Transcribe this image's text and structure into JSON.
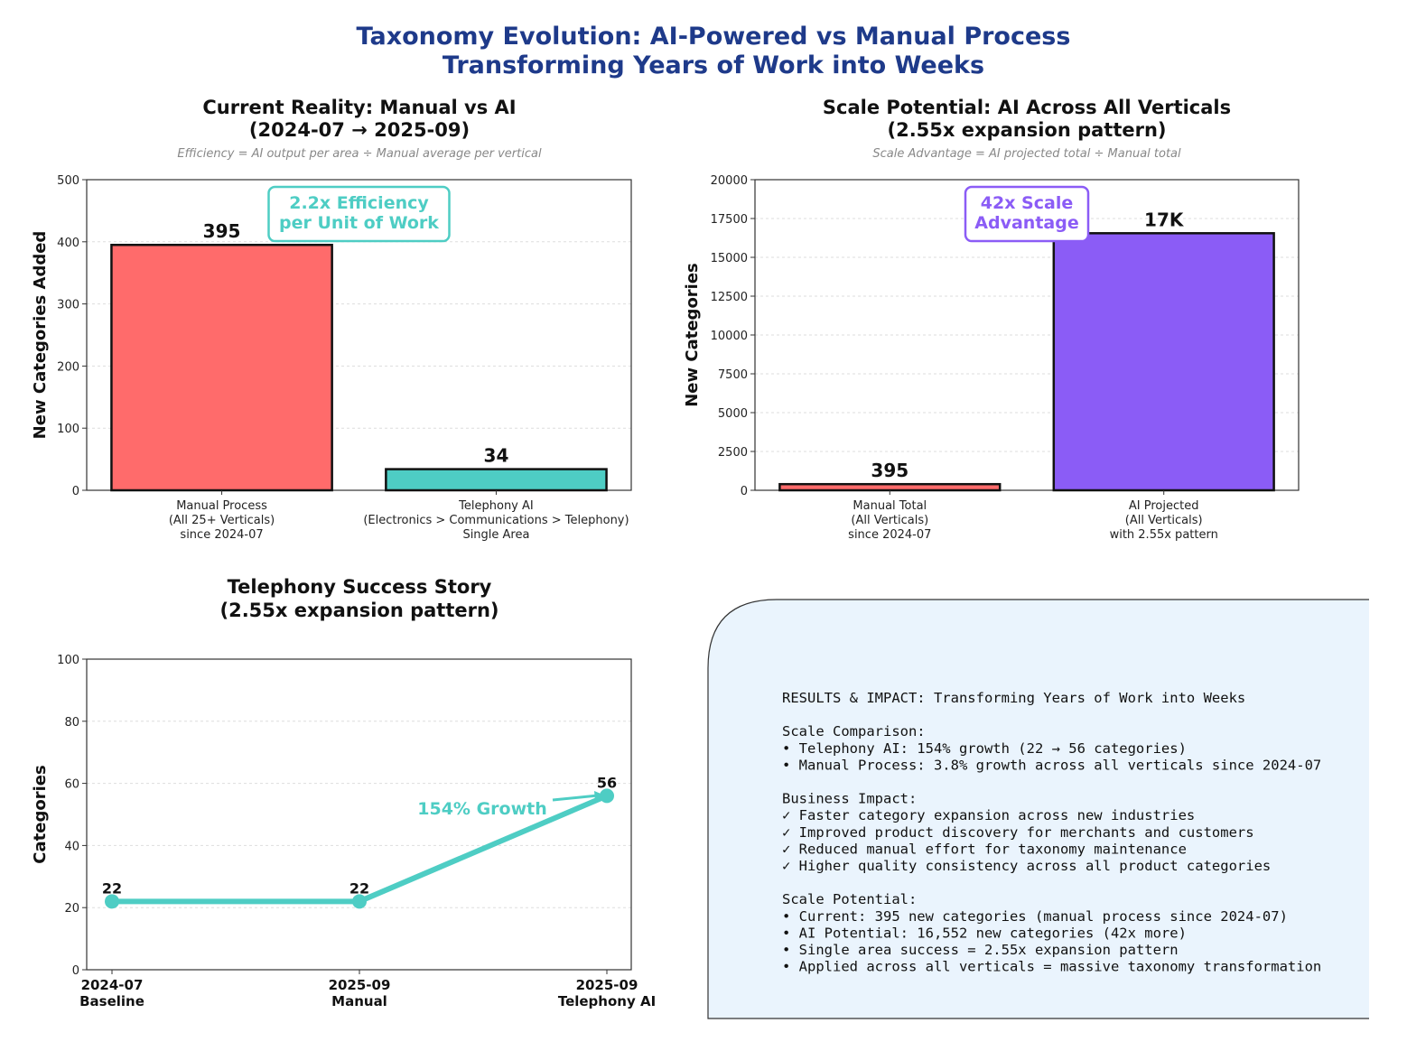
{
  "title_lines": [
    "Taxonomy Evolution: AI-Powered vs Manual Process",
    "Transforming Years of Work into Weeks"
  ],
  "colors": {
    "title": "#1e3a8a",
    "manual": "#ff6b6b",
    "ai_teal": "#4ecdc4",
    "ai_purple": "#8b5cf6",
    "panel_bg": "#eaf4fd"
  },
  "chart_data": [
    {
      "type": "bar",
      "title_lines": [
        "Current Reality: Manual vs AI",
        "(2024-07 → 2025-09)"
      ],
      "subtitle": "Efficiency = AI output per area ÷ Manual average per vertical",
      "categories": [
        [
          "Manual Process",
          "(All 25+ Verticals)",
          "since 2024-07"
        ],
        [
          "Telephony AI",
          "(Electronics > Communications > Telephony)",
          "Single Area"
        ]
      ],
      "values": [
        395,
        34
      ],
      "value_labels": [
        "395",
        "34"
      ],
      "bar_colors": [
        "#ff6b6b",
        "#4ecdc4"
      ],
      "ylabel": "New Categories Added",
      "ylim": [
        0,
        500
      ],
      "yticks": [
        0,
        100,
        200,
        300,
        400,
        500
      ],
      "annotation": [
        "2.2x Efficiency",
        "per Unit of Work"
      ],
      "grid": true
    },
    {
      "type": "bar",
      "title_lines": [
        "Scale Potential: AI Across All Verticals",
        "(2.55x expansion pattern)"
      ],
      "subtitle": "Scale Advantage = AI projected total ÷ Manual total",
      "categories": [
        [
          "Manual Total",
          "(All Verticals)",
          "since 2024-07"
        ],
        [
          "AI Projected",
          "(All Verticals)",
          "with 2.55x pattern"
        ]
      ],
      "values": [
        395,
        16552
      ],
      "value_labels": [
        "395",
        "17K"
      ],
      "bar_colors": [
        "#ff6b6b",
        "#8b5cf6"
      ],
      "ylabel": "New Categories",
      "ylim": [
        0,
        20000
      ],
      "yticks": [
        0,
        2500,
        5000,
        7500,
        10000,
        12500,
        15000,
        17500,
        20000
      ],
      "annotation": [
        "42x Scale",
        "Advantage"
      ],
      "grid": true
    },
    {
      "type": "line",
      "title_lines": [
        "Telephony Success Story",
        "(2.55x expansion pattern)"
      ],
      "categories": [
        [
          "2024-07",
          "Baseline"
        ],
        [
          "2025-09",
          "Manual"
        ],
        [
          "2025-09",
          "Telephony AI"
        ]
      ],
      "values": [
        22,
        22,
        56
      ],
      "value_labels": [
        "22",
        "22",
        "56"
      ],
      "line_color": "#4ecdc4",
      "ylabel": "Categories",
      "ylim": [
        0,
        100
      ],
      "yticks": [
        0,
        20,
        40,
        60,
        80,
        100
      ],
      "annotation": "154% Growth",
      "grid": true
    }
  ],
  "results_panel": {
    "lines": [
      "RESULTS & IMPACT: Transforming Years of Work into Weeks",
      "",
      "Scale Comparison:",
      "• Telephony AI: 154% growth (22 → 56 categories)",
      "• Manual Process: 3.8% growth across all verticals since 2024-07",
      "",
      "Business Impact:",
      "✓ Faster category expansion across new industries",
      "✓ Improved product discovery for merchants and customers",
      "✓ Reduced manual effort for taxonomy maintenance",
      "✓ Higher quality consistency across all product categories",
      "",
      "Scale Potential:",
      "• Current: 395 new categories (manual process since 2024-07)",
      "• AI Potential: 16,552 new categories (42x more)",
      "• Single area success = 2.55x expansion pattern",
      "• Applied across all verticals = massive taxonomy transformation"
    ]
  }
}
